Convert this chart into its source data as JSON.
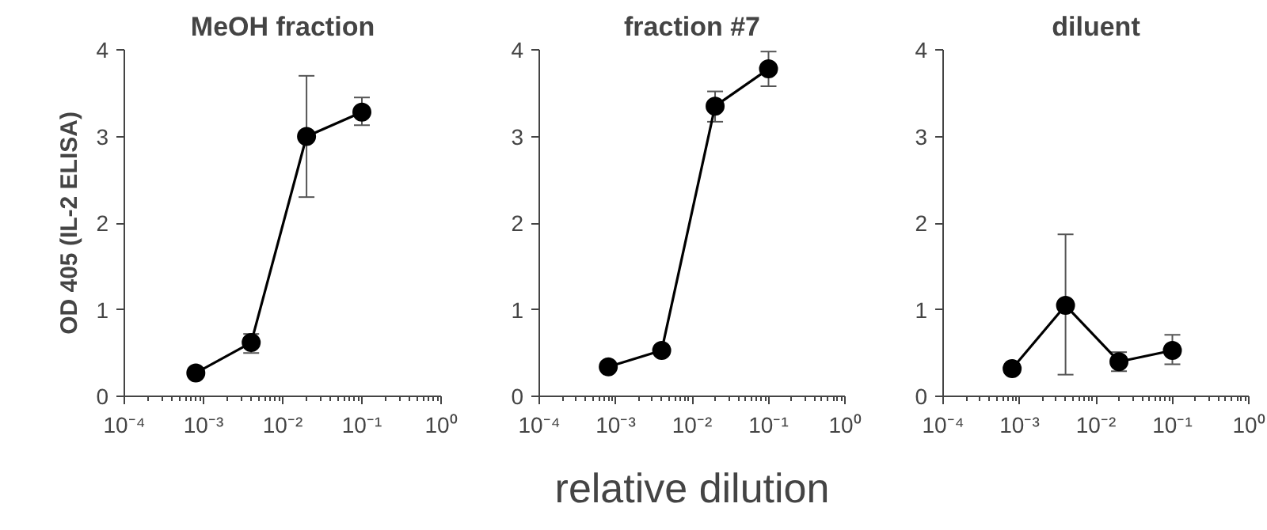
{
  "chart_data": [
    {
      "type": "line",
      "title": "MeOH fraction",
      "ylabel": "OD 405 (IL-2 ELISA)",
      "log": "x",
      "marker": "circle",
      "grid": false,
      "xlim": [
        0.0001,
        1
      ],
      "xticks": [
        {
          "value": 0.0001,
          "label": "10⁻⁴"
        },
        {
          "value": 0.001,
          "label": "10⁻³"
        },
        {
          "value": 0.01,
          "label": "10⁻²"
        },
        {
          "value": 0.1,
          "label": "10⁻¹"
        },
        {
          "value": 1,
          "label": "10⁰"
        }
      ],
      "ylim": [
        0,
        4
      ],
      "yticks": [
        0,
        1,
        2,
        3,
        4
      ],
      "series": [
        {
          "color": "#000000",
          "x": [
            0.0008,
            0.004,
            0.02,
            0.1
          ],
          "values": [
            0.27,
            0.62,
            3.0,
            3.28
          ],
          "errors": [
            null,
            [
              0.5,
              0.72
            ],
            [
              2.3,
              3.7
            ],
            [
              3.13,
              3.45
            ]
          ]
        }
      ]
    },
    {
      "type": "line",
      "title": "fraction #7",
      "xlabel": "relative dilution",
      "log": "x",
      "marker": "circle",
      "grid": false,
      "xlim": [
        0.0001,
        1
      ],
      "xticks": [
        {
          "value": 0.0001,
          "label": "10⁻⁴"
        },
        {
          "value": 0.001,
          "label": "10⁻³"
        },
        {
          "value": 0.01,
          "label": "10⁻²"
        },
        {
          "value": 0.1,
          "label": "10⁻¹"
        },
        {
          "value": 1,
          "label": "10⁰"
        }
      ],
      "ylim": [
        0,
        4
      ],
      "yticks": [
        0,
        1,
        2,
        3,
        4
      ],
      "series": [
        {
          "color": "#000000",
          "x": [
            0.0008,
            0.004,
            0.02,
            0.1
          ],
          "values": [
            0.34,
            0.53,
            3.35,
            3.78
          ],
          "errors": [
            null,
            null,
            [
              3.17,
              3.52
            ],
            [
              3.58,
              3.98
            ]
          ]
        }
      ]
    },
    {
      "type": "line",
      "title": "diluent",
      "log": "x",
      "marker": "circle",
      "grid": false,
      "xlim": [
        0.0001,
        1
      ],
      "xticks": [
        {
          "value": 0.0001,
          "label": "10⁻⁴"
        },
        {
          "value": 0.001,
          "label": "10⁻³"
        },
        {
          "value": 0.01,
          "label": "10⁻²"
        },
        {
          "value": 0.1,
          "label": "10⁻¹"
        },
        {
          "value": 1,
          "label": "10⁰"
        }
      ],
      "ylim": [
        0,
        4
      ],
      "yticks": [
        0,
        1,
        2,
        3,
        4
      ],
      "series": [
        {
          "color": "#000000",
          "x": [
            0.0008,
            0.004,
            0.02,
            0.1
          ],
          "values": [
            0.32,
            1.05,
            0.4,
            0.53
          ],
          "errors": [
            null,
            [
              0.25,
              1.87
            ],
            [
              0.29,
              0.51
            ],
            [
              0.37,
              0.71
            ]
          ]
        }
      ]
    }
  ]
}
